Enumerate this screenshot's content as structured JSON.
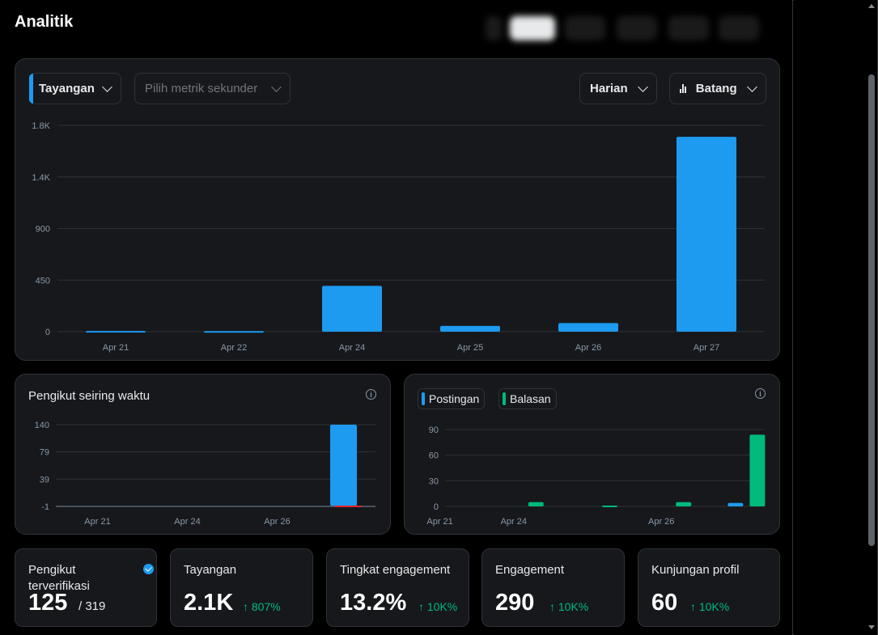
{
  "page": {
    "title": "Analitik"
  },
  "controls": {
    "primary_metric": "Tayangan",
    "secondary_metric_placeholder": "Pilih metrik sekunder",
    "interval": "Harian",
    "chart_type": "Batang"
  },
  "colors": {
    "primary": "#1d9bf0",
    "secondary": "#00ba7c",
    "negative": "#f4212e"
  },
  "chart_data": [
    {
      "id": "main",
      "type": "bar",
      "series": [
        {
          "name": "Tayangan",
          "values": [
            6,
            5,
            400,
            50,
            75,
            1700
          ]
        }
      ],
      "categories": [
        "Apr 21",
        "Apr 22",
        "Apr 24",
        "Apr 25",
        "Apr 26",
        "Apr 27"
      ],
      "yticks": [
        "0",
        "450",
        "900",
        "1.4K",
        "1.8K"
      ],
      "ylim": [
        0,
        1800
      ]
    },
    {
      "id": "followers",
      "type": "bar",
      "title": "Pengikut seiring waktu",
      "categories": [
        "Apr 21",
        "Apr 24",
        "Apr 26",
        ""
      ],
      "yticks": [
        "-1",
        "39",
        "79",
        "140"
      ],
      "ylim": [
        -1,
        140
      ],
      "series": [
        {
          "name": "Pengikut",
          "values": [
            0,
            0,
            0,
            140
          ]
        }
      ]
    },
    {
      "id": "posts",
      "type": "bar",
      "categories": [
        "Apr 21",
        "Apr 24",
        "",
        "Apr 26",
        ""
      ],
      "yticks": [
        "0",
        "30",
        "60",
        "90"
      ],
      "ylim": [
        0,
        90
      ],
      "series": [
        {
          "name": "Postingan",
          "values": [
            0,
            0,
            0,
            0,
            4
          ]
        },
        {
          "name": "Balasan",
          "values": [
            0,
            5,
            1,
            5,
            84
          ]
        }
      ]
    }
  ],
  "stats": [
    {
      "label": "Pengikut terverifikasi",
      "value": "125",
      "total": "/ 319"
    },
    {
      "label": "Tayangan",
      "value": "2.1K",
      "change": "↑ 807%"
    },
    {
      "label": "Tingkat engagement",
      "value": "13.2%",
      "change": "↑ 10K%"
    },
    {
      "label": "Engagement",
      "value": "290",
      "change": "↑ 10K%"
    },
    {
      "label": "Kunjungan profil",
      "value": "60",
      "change": "↑ 10K%"
    }
  ]
}
